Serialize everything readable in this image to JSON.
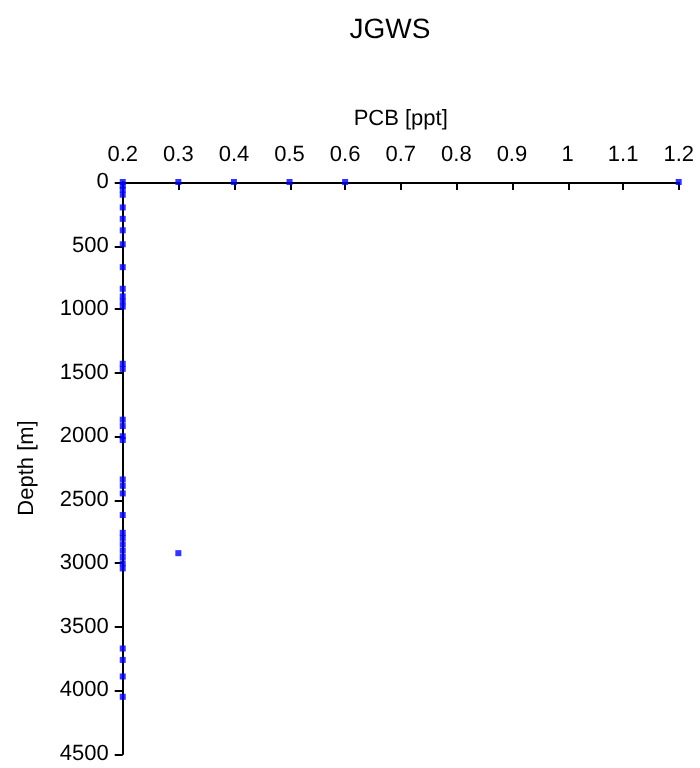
{
  "chart_data": {
    "type": "scatter",
    "title": "JGWS",
    "xlabel": "PCB [ppt]",
    "ylabel": "Depth [m]",
    "series": [
      {
        "color": "#0000ff",
        "x": [
          0.2,
          0.2,
          0.2,
          0.2,
          0.2,
          0.2,
          0.2,
          0.2,
          0.2,
          0.2,
          0.2,
          0.2,
          0.2,
          0.2,
          0.2,
          0.2,
          0.2,
          0.2,
          0.2,
          0.2,
          0.2,
          0.2,
          0.2,
          0.2,
          0.2,
          0.2,
          0.2,
          0.2,
          0.2,
          0.2,
          0.2,
          0.2,
          0.2,
          0.2,
          0.3,
          0.4,
          0.5,
          0.6,
          1.2,
          0.3
        ],
        "values": [
          0,
          30,
          60,
          100,
          200,
          290,
          380,
          490,
          670,
          840,
          900,
          940,
          980,
          1430,
          1470,
          1870,
          1920,
          2000,
          2030,
          2340,
          2390,
          2450,
          2620,
          2760,
          2800,
          2850,
          2900,
          2950,
          3000,
          3040,
          3670,
          3760,
          3890,
          4050,
          0,
          0,
          0,
          0,
          0,
          2920
        ]
      }
    ],
    "xlim": [
      0.2,
      1.2
    ],
    "xticks": [
      0.2,
      0.3,
      0.4,
      0.5,
      0.6,
      0.7,
      0.8,
      0.9,
      1,
      1.1,
      1.2
    ],
    "ylim": [
      4500,
      0
    ],
    "yticks": [
      0,
      500,
      1000,
      1500,
      2000,
      2500,
      3000,
      3500,
      4000,
      4500
    ],
    "grid": false,
    "marker": "square"
  }
}
